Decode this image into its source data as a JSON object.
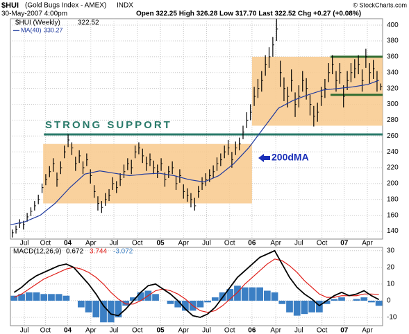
{
  "header": {
    "symbol": "$HUI",
    "name": "(Gold Bugs Index - AMEX)",
    "exchange": "INDX",
    "date": "30-May-2007 4:00pm",
    "quote": "Open 322.25  High 326.28  Low 317.70  Last 322.52  Chg +0.27 (+0.08%)",
    "credit": "© StockCharts.com"
  },
  "chart_data": [
    {
      "type": "ohlc",
      "name": "$HUI (Weekly)",
      "color": "#000000",
      "grid": true,
      "xlim": [
        0,
        100
      ],
      "ylim": [
        130,
        408
      ],
      "yticks": [
        140,
        160,
        180,
        200,
        220,
        240,
        260,
        280,
        300,
        320,
        340,
        360,
        380,
        400
      ],
      "xticks": [
        {
          "value": 3.75,
          "label": "Jul"
        },
        {
          "value": 9.4,
          "label": "Oct"
        },
        {
          "value": 15.4,
          "label": "04"
        },
        {
          "value": 21.6,
          "label": "Apr"
        },
        {
          "value": 27.8,
          "label": "Jul"
        },
        {
          "value": 34.1,
          "label": "Oct"
        },
        {
          "value": 40.3,
          "label": "05"
        },
        {
          "value": 46.5,
          "label": "Apr"
        },
        {
          "value": 52.7,
          "label": "Jul"
        },
        {
          "value": 58.9,
          "label": "Oct"
        },
        {
          "value": 64.9,
          "label": "06"
        },
        {
          "value": 71.3,
          "label": "Apr"
        },
        {
          "value": 77.5,
          "label": "Jul"
        },
        {
          "value": 83.7,
          "label": "Oct"
        },
        {
          "value": 89.7,
          "label": "07"
        },
        {
          "value": 95.9,
          "label": "Apr"
        }
      ],
      "high": [
        142,
        147,
        155,
        153,
        163,
        170,
        178,
        186,
        200,
        212,
        222,
        232,
        214,
        228,
        248,
        262,
        252,
        234,
        242,
        228,
        238,
        218,
        198,
        184,
        178,
        188,
        193,
        208,
        203,
        213,
        224,
        232,
        230,
        248,
        252,
        244,
        234,
        238,
        229,
        224,
        232,
        214,
        222,
        228,
        210,
        218,
        199,
        194,
        188,
        182,
        197,
        208,
        213,
        218,
        223,
        233,
        238,
        248,
        255,
        240,
        253,
        258,
        273,
        290,
        300,
        322,
        332,
        342,
        362,
        372,
        385,
        408,
        355,
        334,
        322,
        344,
        315,
        324,
        342,
        333,
        312,
        298,
        302,
        322,
        332,
        352,
        362,
        342,
        352,
        324,
        342,
        352,
        357,
        362,
        344,
        370,
        352,
        356,
        342,
        326.28
      ],
      "low": [
        132,
        137,
        144,
        142,
        152,
        159,
        166,
        174,
        188,
        198,
        208,
        215,
        196,
        212,
        232,
        246,
        236,
        216,
        226,
        212,
        222,
        200,
        182,
        166,
        163,
        172,
        178,
        192,
        188,
        197,
        207,
        217,
        212,
        232,
        237,
        226,
        216,
        222,
        212,
        207,
        216,
        196,
        207,
        212,
        192,
        201,
        181,
        177,
        170,
        166,
        182,
        192,
        197,
        202,
        207,
        216,
        222,
        232,
        236,
        220,
        236,
        242,
        256,
        270,
        280,
        298,
        308,
        316,
        336,
        346,
        360,
        380,
        322,
        304,
        296,
        316,
        284,
        296,
        316,
        306,
        286,
        272,
        278,
        298,
        308,
        328,
        338,
        316,
        326,
        296,
        318,
        328,
        333,
        338,
        316,
        346,
        326,
        332,
        316,
        317.7
      ],
      "close": [
        138,
        142,
        150,
        148,
        158,
        165,
        172,
        180,
        195,
        205,
        215,
        225,
        205,
        220,
        240,
        255,
        245,
        225,
        235,
        220,
        230,
        210,
        190,
        175,
        170,
        180,
        185,
        200,
        195,
        205,
        215,
        225,
        220,
        240,
        245,
        235,
        225,
        230,
        220,
        215,
        225,
        205,
        215,
        220,
        200,
        210,
        190,
        185,
        180,
        172,
        190,
        200,
        205,
        210,
        215,
        225,
        230,
        240,
        245,
        230,
        245,
        250,
        265,
        280,
        290,
        310,
        320,
        330,
        350,
        360,
        375,
        395,
        340,
        320,
        310,
        330,
        300,
        310,
        330,
        320,
        300,
        285,
        290,
        310,
        320,
        340,
        350,
        330,
        340,
        310,
        330,
        340,
        345,
        350,
        330,
        360,
        340,
        345,
        330,
        322.52
      ],
      "series": [
        {
          "name": "MA(40)",
          "color": "#1f3a9e",
          "x": [
            0,
            4,
            8,
            12,
            16,
            20,
            24,
            28,
            32,
            36,
            40,
            44,
            48,
            52,
            56,
            60,
            64,
            68,
            72,
            76,
            80,
            84,
            88,
            92,
            96,
            99
          ],
          "values": [
            148,
            152,
            160,
            175,
            195,
            212,
            216,
            213,
            210,
            212,
            213,
            210,
            205,
            202,
            210,
            225,
            245,
            270,
            295,
            305,
            312,
            318,
            320,
            322,
            325,
            330.27
          ]
        }
      ],
      "zones": [
        {
          "x": [
            8.8,
            64.9
          ],
          "y": [
            175,
            250
          ],
          "color": "#f8c98c"
        },
        {
          "x": [
            64.9,
            100
          ],
          "y": [
            273,
            360
          ],
          "color": "#f8c98c"
        }
      ],
      "levels": [
        {
          "x": [
            9,
            100
          ],
          "value": 262,
          "color": "#2a7a6a"
        },
        {
          "x": [
            86,
            100
          ],
          "value": 360,
          "color": "#2f6b2f"
        },
        {
          "x": [
            86,
            100
          ],
          "value": 312,
          "color": "#2f6b2f"
        }
      ],
      "annotations": {
        "support": "STRONG SUPPORT",
        "ma200": "200dMA"
      }
    },
    {
      "type": "macd",
      "name": "MACD(12,26,9)",
      "grid": true,
      "xlim": [
        0,
        50
      ],
      "ylim": [
        -15,
        32
      ],
      "yticks": [
        -10,
        0,
        10,
        20,
        30
      ],
      "xticks": [
        {
          "value": 1.875,
          "label": "Jul"
        },
        {
          "value": 4.7,
          "label": "Oct"
        },
        {
          "value": 7.7,
          "label": "04"
        },
        {
          "value": 10.8,
          "label": "Apr"
        },
        {
          "value": 13.9,
          "label": "Jul"
        },
        {
          "value": 17.05,
          "label": "Oct"
        },
        {
          "value": 20.15,
          "label": "05"
        },
        {
          "value": 23.25,
          "label": "Apr"
        },
        {
          "value": 26.35,
          "label": "Jul"
        },
        {
          "value": 29.45,
          "label": "Oct"
        },
        {
          "value": 32.45,
          "label": "06"
        },
        {
          "value": 35.65,
          "label": "Apr"
        },
        {
          "value": 38.75,
          "label": "Jul"
        },
        {
          "value": 41.85,
          "label": "Oct"
        },
        {
          "value": 44.85,
          "label": "07"
        },
        {
          "value": 47.95,
          "label": "Apr"
        }
      ],
      "series": [
        {
          "name": "MACD",
          "color": "#000000",
          "values": [
            5,
            8,
            12,
            15,
            17,
            19,
            21,
            22,
            20,
            15,
            10,
            4,
            -3,
            -8,
            -9,
            -5,
            0,
            5,
            9,
            10,
            7,
            4,
            0,
            -5,
            -9,
            -10,
            -8,
            -4,
            2,
            8,
            14,
            18,
            22,
            26,
            28,
            30,
            22,
            14,
            8,
            4,
            1,
            -3,
            0,
            3,
            5,
            3,
            4,
            6,
            3,
            0.672
          ]
        },
        {
          "name": "Signal",
          "color": "#e0201b",
          "values": [
            2,
            4,
            7,
            10,
            13,
            15,
            17,
            19,
            20,
            19,
            17,
            14,
            10,
            5,
            1,
            -2,
            -2,
            0,
            3,
            6,
            7,
            6,
            4,
            1,
            -3,
            -6,
            -7,
            -6,
            -3,
            1,
            5,
            10,
            14,
            18,
            22,
            25,
            24,
            21,
            17,
            12,
            8,
            4,
            2,
            2,
            3,
            3,
            3,
            4,
            4,
            3.744
          ]
        },
        {
          "name": "Histogram",
          "color": "#3b7fc4",
          "values": [
            3,
            4,
            5,
            5,
            4,
            4,
            4,
            3,
            0,
            -4,
            -7,
            -10,
            -13,
            -13,
            -10,
            -3,
            2,
            5,
            6,
            4,
            0,
            -2,
            -4,
            -6,
            -6,
            -4,
            -1,
            2,
            5,
            7,
            9,
            8,
            8,
            8,
            6,
            5,
            -2,
            -7,
            -9,
            -8,
            -7,
            -7,
            -2,
            1,
            2,
            0,
            1,
            2,
            -1,
            -3.072
          ]
        }
      ]
    }
  ]
}
